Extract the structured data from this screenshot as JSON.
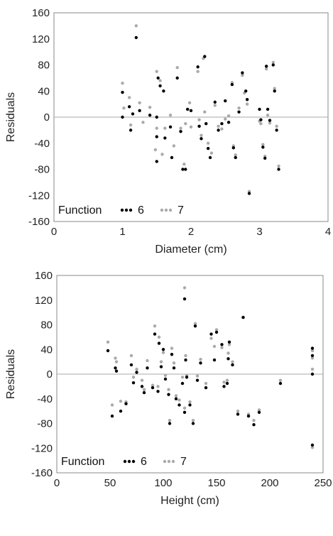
{
  "chart_data": [
    {
      "type": "scatter",
      "title": "",
      "xlabel": "Diameter (cm)",
      "ylabel": "Residuals",
      "xlim": [
        0,
        4
      ],
      "ylim": [
        -160,
        160
      ],
      "x_ticks": [
        "0",
        "1",
        "2",
        "3",
        "4"
      ],
      "y_ticks": [
        "160",
        "120",
        "80",
        "40",
        "0",
        "-40",
        "-80",
        "-120",
        "-160"
      ],
      "zero_line": true,
      "grid": false,
      "legend_title": "Function",
      "legend_position": "bottom-left",
      "series": [
        {
          "name": "6",
          "color": "#000000",
          "points": [
            [
              1.0,
              38
            ],
            [
              1.0,
              0
            ],
            [
              1.1,
              16
            ],
            [
              1.12,
              -20
            ],
            [
              1.15,
              5
            ],
            [
              1.2,
              122
            ],
            [
              1.25,
              10
            ],
            [
              1.4,
              3
            ],
            [
              1.5,
              0
            ],
            [
              1.5,
              -30
            ],
            [
              1.5,
              -68
            ],
            [
              1.52,
              60
            ],
            [
              1.55,
              48
            ],
            [
              1.6,
              40
            ],
            [
              1.62,
              -32
            ],
            [
              1.7,
              -15
            ],
            [
              1.72,
              -62
            ],
            [
              1.8,
              60
            ],
            [
              1.85,
              -22
            ],
            [
              1.88,
              -80
            ],
            [
              1.92,
              -80
            ],
            [
              1.95,
              12
            ],
            [
              2.0,
              10
            ],
            [
              2.1,
              77
            ],
            [
              2.12,
              -14
            ],
            [
              2.15,
              -33
            ],
            [
              2.2,
              93
            ],
            [
              2.22,
              -10
            ],
            [
              2.25,
              -48
            ],
            [
              2.28,
              -62
            ],
            [
              2.35,
              23
            ],
            [
              2.4,
              -20
            ],
            [
              2.45,
              -10
            ],
            [
              2.5,
              25
            ],
            [
              2.55,
              -8
            ],
            [
              2.6,
              50
            ],
            [
              2.62,
              -47
            ],
            [
              2.65,
              -62
            ],
            [
              2.7,
              8
            ],
            [
              2.75,
              68
            ],
            [
              2.8,
              40
            ],
            [
              2.82,
              27
            ],
            [
              2.85,
              -117
            ],
            [
              3.0,
              12
            ],
            [
              3.02,
              -4
            ],
            [
              3.05,
              -46
            ],
            [
              3.08,
              -63
            ],
            [
              3.1,
              78
            ],
            [
              3.12,
              12
            ],
            [
              3.15,
              -5
            ],
            [
              3.2,
              80
            ],
            [
              3.22,
              40
            ],
            [
              3.25,
              -20
            ],
            [
              3.28,
              -80
            ]
          ]
        },
        {
          "name": "7",
          "color": "#aaaaaa",
          "points": [
            [
              1.0,
              52
            ],
            [
              1.02,
              14
            ],
            [
              1.1,
              30
            ],
            [
              1.12,
              -12
            ],
            [
              1.2,
              140
            ],
            [
              1.25,
              22
            ],
            [
              1.3,
              -8
            ],
            [
              1.4,
              15
            ],
            [
              1.48,
              -50
            ],
            [
              1.5,
              70
            ],
            [
              1.5,
              -17
            ],
            [
              1.55,
              56
            ],
            [
              1.58,
              -57
            ],
            [
              1.62,
              -17
            ],
            [
              1.7,
              3
            ],
            [
              1.75,
              -44
            ],
            [
              1.8,
              76
            ],
            [
              1.85,
              -17
            ],
            [
              1.9,
              -72
            ],
            [
              1.92,
              -10
            ],
            [
              1.98,
              22
            ],
            [
              2.0,
              -15
            ],
            [
              2.1,
              70
            ],
            [
              2.12,
              -4
            ],
            [
              2.15,
              -28
            ],
            [
              2.18,
              90
            ],
            [
              2.2,
              8
            ],
            [
              2.25,
              -40
            ],
            [
              2.3,
              -55
            ],
            [
              2.35,
              18
            ],
            [
              2.4,
              -14
            ],
            [
              2.45,
              -18
            ],
            [
              2.5,
              -3
            ],
            [
              2.55,
              2
            ],
            [
              2.6,
              53
            ],
            [
              2.62,
              -44
            ],
            [
              2.65,
              -58
            ],
            [
              2.7,
              14
            ],
            [
              2.75,
              64
            ],
            [
              2.78,
              37
            ],
            [
              2.82,
              20
            ],
            [
              2.85,
              -114
            ],
            [
              3.0,
              -6
            ],
            [
              3.02,
              -10
            ],
            [
              3.05,
              -42
            ],
            [
              3.08,
              -60
            ],
            [
              3.1,
              74
            ],
            [
              3.12,
              3
            ],
            [
              3.15,
              -9
            ],
            [
              3.2,
              84
            ],
            [
              3.22,
              44
            ],
            [
              3.25,
              -14
            ],
            [
              3.28,
              -75
            ]
          ]
        }
      ]
    },
    {
      "type": "scatter",
      "title": "",
      "xlabel": "Height (cm)",
      "ylabel": "Residuals",
      "xlim": [
        0,
        250
      ],
      "ylim": [
        -160,
        160
      ],
      "x_ticks": [
        "0",
        "50",
        "100",
        "150",
        "200",
        "250"
      ],
      "y_ticks": [
        "160",
        "120",
        "80",
        "40",
        "0",
        "-40",
        "-80",
        "-120",
        "-160"
      ],
      "zero_line": true,
      "grid": false,
      "legend_title": "Function",
      "legend_position": "bottom-left",
      "series": [
        {
          "name": "6",
          "color": "#000000",
          "points": [
            [
              48,
              38
            ],
            [
              52,
              -68
            ],
            [
              55,
              10
            ],
            [
              56,
              5
            ],
            [
              60,
              -60
            ],
            [
              65,
              -48
            ],
            [
              70,
              15
            ],
            [
              72,
              -14
            ],
            [
              75,
              3
            ],
            [
              80,
              -20
            ],
            [
              82,
              -30
            ],
            [
              85,
              10
            ],
            [
              90,
              -22
            ],
            [
              92,
              65
            ],
            [
              95,
              -28
            ],
            [
              96,
              50
            ],
            [
              98,
              12
            ],
            [
              100,
              40
            ],
            [
              102,
              -8
            ],
            [
              105,
              -33
            ],
            [
              106,
              -80
            ],
            [
              108,
              32
            ],
            [
              110,
              10
            ],
            [
              112,
              -40
            ],
            [
              115,
              -50
            ],
            [
              118,
              -15
            ],
            [
              120,
              122
            ],
            [
              120,
              -62
            ],
            [
              121,
              23
            ],
            [
              122,
              -5
            ],
            [
              125,
              -50
            ],
            [
              128,
              -80
            ],
            [
              130,
              78
            ],
            [
              132,
              -10
            ],
            [
              135,
              18
            ],
            [
              140,
              -22
            ],
            [
              145,
              65
            ],
            [
              148,
              23
            ],
            [
              150,
              68
            ],
            [
              155,
              48
            ],
            [
              157,
              -20
            ],
            [
              160,
              -15
            ],
            [
              161,
              25
            ],
            [
              162,
              52
            ],
            [
              165,
              15
            ],
            [
              170,
              -65
            ],
            [
              175,
              92
            ],
            [
              180,
              -68
            ],
            [
              185,
              -82
            ],
            [
              190,
              -62
            ],
            [
              210,
              -15
            ],
            [
              240,
              42
            ],
            [
              240,
              30
            ],
            [
              240,
              0
            ],
            [
              240,
              -115
            ]
          ]
        },
        {
          "name": "7",
          "color": "#aaaaaa",
          "points": [
            [
              48,
              52
            ],
            [
              52,
              -50
            ],
            [
              55,
              26
            ],
            [
              56,
              20
            ],
            [
              60,
              -44
            ],
            [
              65,
              -45
            ],
            [
              70,
              30
            ],
            [
              72,
              -5
            ],
            [
              75,
              8
            ],
            [
              80,
              -10
            ],
            [
              82,
              -25
            ],
            [
              85,
              22
            ],
            [
              90,
              -18
            ],
            [
              92,
              78
            ],
            [
              95,
              -20
            ],
            [
              96,
              60
            ],
            [
              98,
              20
            ],
            [
              100,
              35
            ],
            [
              102,
              -2
            ],
            [
              105,
              -25
            ],
            [
              106,
              -75
            ],
            [
              108,
              42
            ],
            [
              110,
              18
            ],
            [
              112,
              -35
            ],
            [
              115,
              -42
            ],
            [
              118,
              -5
            ],
            [
              120,
              140
            ],
            [
              120,
              -55
            ],
            [
              121,
              30
            ],
            [
              122,
              -2
            ],
            [
              125,
              -45
            ],
            [
              128,
              -75
            ],
            [
              130,
              82
            ],
            [
              132,
              -3
            ],
            [
              135,
              24
            ],
            [
              140,
              -15
            ],
            [
              145,
              58
            ],
            [
              148,
              45
            ],
            [
              150,
              72
            ],
            [
              155,
              43
            ],
            [
              157,
              -13
            ],
            [
              160,
              -10
            ],
            [
              161,
              34
            ],
            [
              162,
              48
            ],
            [
              165,
              20
            ],
            [
              170,
              -60
            ],
            [
              175,
              92
            ],
            [
              180,
              -65
            ],
            [
              185,
              -75
            ],
            [
              190,
              -58
            ],
            [
              210,
              -10
            ],
            [
              240,
              38
            ],
            [
              240,
              26
            ],
            [
              240,
              8
            ],
            [
              240,
              -119
            ]
          ]
        }
      ]
    }
  ]
}
